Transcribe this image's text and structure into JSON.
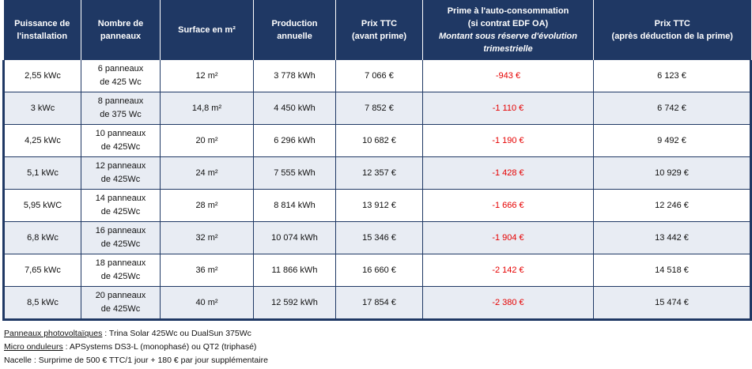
{
  "headers": [
    {
      "lines": [
        "Puissance de",
        "l'installation"
      ]
    },
    {
      "lines": [
        "Nombre de",
        "panneaux"
      ]
    },
    {
      "lines": [
        "Surface en m²"
      ]
    },
    {
      "lines": [
        "Production",
        "annuelle"
      ]
    },
    {
      "lines": [
        "Prix TTC",
        "(avant prime)"
      ]
    },
    {
      "lines": [
        "Prime à l'auto-consommation",
        "(si contrat EDF OA)"
      ],
      "italic_lines": [
        "Montant sous réserve d'évolution",
        "trimestrielle"
      ]
    },
    {
      "lines": [
        "Prix TTC",
        "(après déduction de la prime)"
      ]
    }
  ],
  "rows": [
    {
      "puissance": "2,55 kWc",
      "panneaux": [
        "6 panneaux",
        "de 425 Wc"
      ],
      "surface": "12 m²",
      "production": "3 778 kWh",
      "prix_avant": "7 066 €",
      "prime": "-943 €",
      "prix_apres": "6 123 €"
    },
    {
      "puissance": "3 kWc",
      "panneaux": [
        "8 panneaux",
        "de 375 Wc"
      ],
      "surface": "14,8 m²",
      "production": "4 450 kWh",
      "prix_avant": "7 852 €",
      "prime": "-1 110 €",
      "prix_apres": "6 742 €"
    },
    {
      "puissance": "4,25 kWc",
      "panneaux": [
        "10 panneaux",
        "de 425Wc"
      ],
      "surface": "20 m²",
      "production": "6 296 kWh",
      "prix_avant": "10 682 €",
      "prime": "-1 190 €",
      "prix_apres": "9 492 €"
    },
    {
      "puissance": "5,1 kWc",
      "panneaux": [
        "12 panneaux",
        "de 425Wc"
      ],
      "surface": "24 m²",
      "production": "7 555 kWh",
      "prix_avant": "12 357 €",
      "prime": "-1 428 €",
      "prix_apres": "10 929 €"
    },
    {
      "puissance": "5,95 kWC",
      "panneaux": [
        "14 panneaux",
        "de 425Wc"
      ],
      "surface": "28 m²",
      "production": "8 814 kWh",
      "prix_avant": "13 912 €",
      "prime": "-1 666 €",
      "prix_apres": "12 246 €"
    },
    {
      "puissance": "6,8 kWc",
      "panneaux": [
        "16 panneaux",
        "de 425Wc"
      ],
      "surface": "32 m²",
      "production": "10 074 kWh",
      "prix_avant": "15 346 €",
      "prime": "-1 904 €",
      "prix_apres": "13 442 €"
    },
    {
      "puissance": "7,65 kWc",
      "panneaux": [
        "18 panneaux",
        "de 425Wc"
      ],
      "surface": "36 m²",
      "production": "11 866 kWh",
      "prix_avant": "16 660 €",
      "prime": "-2 142 €",
      "prix_apres": "14 518 €"
    },
    {
      "puissance": "8,5 kWc",
      "panneaux": [
        "20 panneaux",
        "de 425Wc"
      ],
      "surface": "40 m²",
      "production": "12 592 kWh",
      "prix_avant": "17 854 €",
      "prime": "-2 380 €",
      "prix_apres": "15 474 €"
    }
  ],
  "notes": {
    "panneaux_label": "Panneaux photovoltaïques",
    "panneaux_text": " : Trina Solar 425Wc ou DualSun 375Wc",
    "micro_label": "Micro onduleurs",
    "micro_text": " : APSystems DS3-L (monophasé) ou QT2 (triphasé)",
    "nacelle_text": "Nacelle : Surprime de 500 € TTC/1 jour + 180 € par jour supplémentaire"
  },
  "colors": {
    "header_bg": "#1f3864",
    "alt_row_bg": "#e8ecf3",
    "negative": "#e60000"
  }
}
